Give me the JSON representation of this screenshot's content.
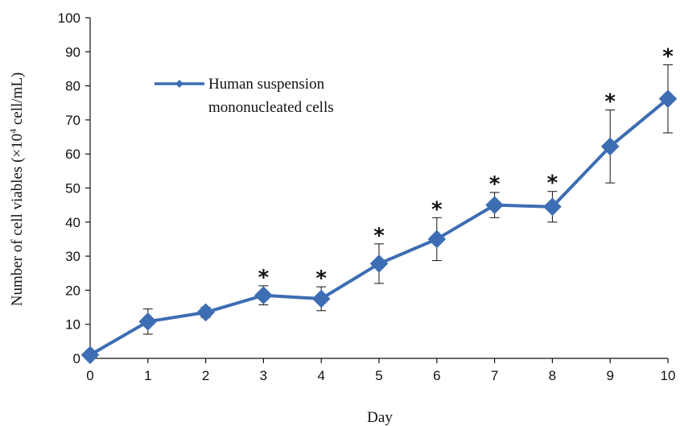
{
  "chart_data": {
    "type": "line",
    "title": "",
    "xlabel": "Day",
    "ylabel_prefix": "Number of cell viables (×10",
    "ylabel_sup": "4",
    "ylabel_suffix": " cell/mL)",
    "x": [
      0,
      1,
      2,
      3,
      4,
      5,
      6,
      7,
      8,
      9,
      10
    ],
    "xlim": [
      0,
      10
    ],
    "ylim": [
      0,
      100
    ],
    "yticks": [
      0,
      10,
      20,
      30,
      40,
      50,
      60,
      70,
      80,
      90,
      100
    ],
    "grid": false,
    "legend_position": "upper-left",
    "series": [
      {
        "name": "Human suspension mononucleated cells",
        "legend_lines": [
          "Human suspension",
          "mononucleated cells"
        ],
        "color": "#3d6db3",
        "marker": "diamond",
        "values": [
          1,
          10.8,
          13.5,
          18.5,
          17.5,
          27.8,
          35,
          45,
          44.5,
          62.2,
          76.2
        ],
        "error": [
          0.3,
          3.7,
          1.5,
          2.8,
          3.5,
          5.8,
          6.3,
          3.7,
          4.5,
          10.7,
          10
        ],
        "significance": [
          "",
          "",
          "",
          "*",
          "*",
          "*",
          "*",
          "*",
          "*",
          "*",
          "*"
        ]
      }
    ]
  }
}
